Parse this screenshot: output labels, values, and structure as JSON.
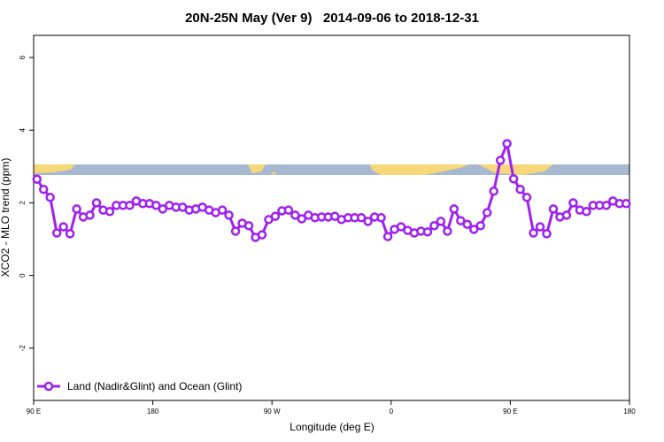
{
  "chart_data": {
    "type": "line",
    "title": "20N-25N May (Ver 9)   2014-09-06 to 2018-12-31",
    "x_label": "Longitude (deg E)",
    "y_label": "XCO2 - MLO trend (ppm)",
    "xlim": [
      90,
      540
    ],
    "ylim": [
      -3.44,
      6.61
    ],
    "xticks": [
      {
        "value": 90,
        "label": "90 E"
      },
      180,
      {
        "value": 270,
        "label": "90 W"
      },
      {
        "value": 360,
        "label": "0"
      },
      {
        "value": 450,
        "label": "90 E"
      },
      {
        "value": 540,
        "label": "180"
      }
    ],
    "yticks": [
      -2,
      0,
      2,
      4,
      6
    ],
    "legend": "bottomleft",
    "x": [
      92.5,
      97.5,
      102.5,
      107.5,
      112.5,
      117.5,
      122.5,
      127.5,
      132.5,
      137.5,
      142.5,
      147.5,
      152.5,
      157.5,
      162.5,
      167.5,
      172.5,
      177.5,
      182.5,
      187.5,
      192.5,
      197.5,
      202.5,
      207.5,
      212.5,
      217.5,
      222.5,
      227.5,
      232.5,
      237.5,
      242.5,
      247.5,
      252.5,
      257.5,
      262.5,
      267.5,
      272.5,
      277.5,
      282.5,
      287.5,
      292.5,
      297.5,
      302.5,
      307.5,
      312.5,
      317.5,
      322.5,
      327.5,
      332.5,
      337.5,
      342.5,
      347.5,
      352.5,
      357.5,
      362.5,
      367.5,
      372.5,
      377.5,
      382.5,
      387.5,
      392.5,
      397.5,
      402.5,
      407.5,
      412.5,
      417.5,
      422.5,
      427.5,
      432.5,
      437.5,
      442.5,
      447.5,
      452.5,
      457.5,
      462.5,
      467.5,
      472.5,
      477.5,
      482.5,
      487.5,
      492.5,
      497.5,
      502.5,
      507.5,
      512.5,
      517.5,
      522.5,
      527.5,
      532.5,
      537.5
    ],
    "series": [
      {
        "name": "Land (Nadir&Glint) and Ocean (Glint)",
        "color": "#a020f0",
        "values": [
          2.65,
          2.37,
          2.15,
          1.17,
          1.34,
          1.15,
          1.83,
          1.61,
          1.66,
          2.0,
          1.8,
          1.76,
          1.93,
          1.93,
          1.93,
          2.05,
          1.98,
          1.98,
          1.93,
          1.83,
          1.93,
          1.88,
          1.88,
          1.8,
          1.83,
          1.88,
          1.8,
          1.73,
          1.8,
          1.66,
          1.22,
          1.44,
          1.37,
          1.05,
          1.12,
          1.54,
          1.63,
          1.78,
          1.8,
          1.66,
          1.56,
          1.66,
          1.59,
          1.61,
          1.61,
          1.63,
          1.54,
          1.59,
          1.59,
          1.59,
          1.49,
          1.61,
          1.59,
          1.07,
          1.27,
          1.34,
          1.24,
          1.17,
          1.22,
          1.2,
          1.37,
          1.49,
          1.22,
          1.83,
          1.51,
          1.41,
          1.27,
          1.37,
          1.73,
          2.32,
          3.17,
          3.63,
          2.66,
          2.37,
          2.15,
          1.17,
          1.34,
          1.15,
          1.83,
          1.61,
          1.66,
          2.0,
          1.8,
          1.76,
          1.93,
          1.93,
          1.93,
          2.05,
          1.98,
          1.98
        ]
      }
    ]
  }
}
